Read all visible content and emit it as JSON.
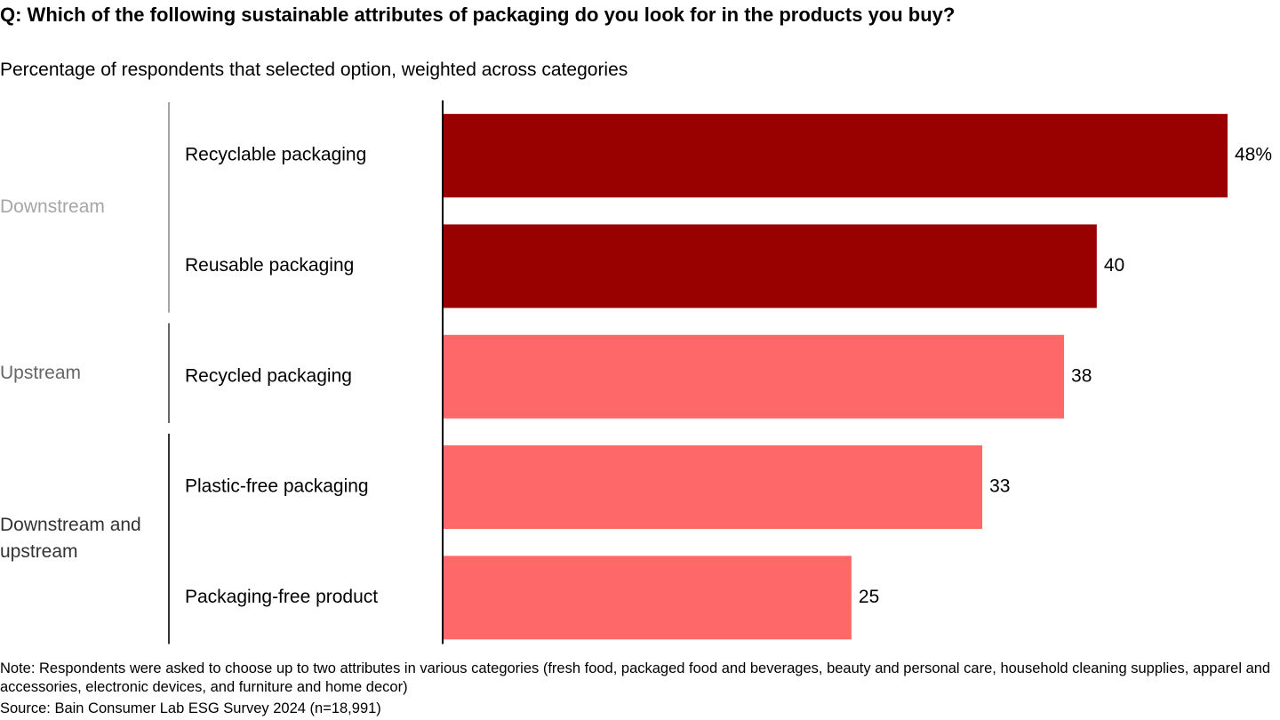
{
  "chart_data": {
    "type": "bar",
    "orientation": "horizontal",
    "title": "Q: Which of the following sustainable attributes of packaging do you look for in the products you buy?",
    "subtitle": "Percentage of respondents that selected option, weighted across categories",
    "categories": [
      "Recyclable packaging",
      "Reusable packaging",
      "Recycled packaging",
      "Plastic-free packaging",
      "Packaging-free product"
    ],
    "values": [
      48,
      40,
      38,
      33,
      25
    ],
    "value_labels": [
      "48%",
      "40",
      "38",
      "33",
      "25"
    ],
    "colors": [
      "#990000",
      "#990000",
      "#ff6868",
      "#ff6868",
      "#ff6868"
    ],
    "xlim": [
      0,
      48
    ],
    "groups": [
      {
        "label": "Downstream",
        "color": "#a6a6a6",
        "span": 2
      },
      {
        "label": "Upstream",
        "color": "#666666",
        "span": 1
      },
      {
        "label": "Downstream and upstream",
        "color": "#333333",
        "span": 2
      }
    ],
    "note": "Note: Respondents were asked to choose up to two attributes in various categories (fresh food, packaged food and beverages, beauty and personal care, household cleaning supplies, apparel and accessories, electronic devices, and furniture and home decor)",
    "source": "Source: Bain Consumer Lab ESG Survey 2024 (n=18,991)"
  }
}
